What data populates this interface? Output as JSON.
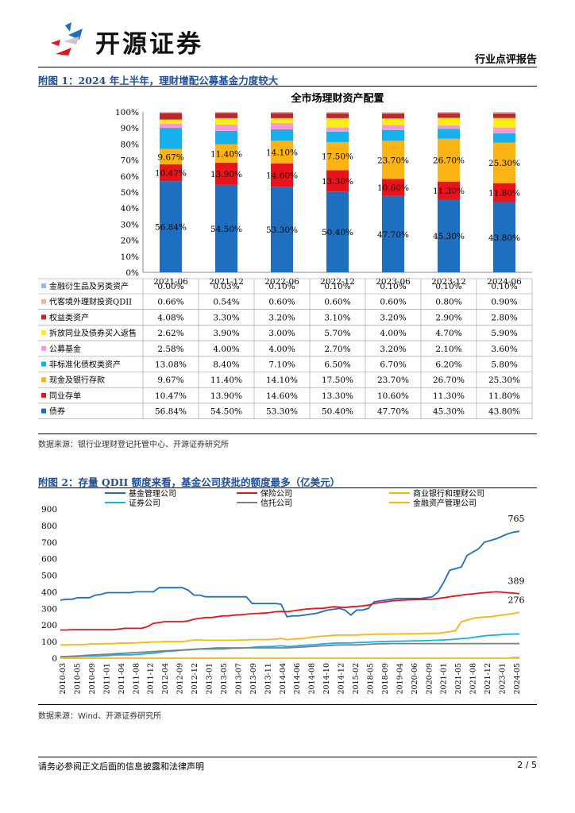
{
  "header": {
    "brand": "开源证券",
    "report_type": "行业点评报告"
  },
  "figure1": {
    "title": "附图 1：2024 年上半年，理财增配公募基金力度较大",
    "source": "数据来源：银行业理财登记托管中心、开源证券研究所",
    "chart_data": {
      "type": "bar",
      "stacked": true,
      "title": "全市场理财资产配置",
      "categories": [
        "2021-06",
        "2021-12",
        "2022-06",
        "2022-12",
        "2023-06",
        "2023-12",
        "2024-06"
      ],
      "ylim": [
        0,
        100
      ],
      "yticks": [
        "0%",
        "10%",
        "20%",
        "30%",
        "40%",
        "50%",
        "60%",
        "70%",
        "80%",
        "90%",
        "100%"
      ],
      "series": [
        {
          "name": "债券",
          "color": "#1f6fc1",
          "values": [
            56.84,
            54.5,
            53.3,
            50.4,
            47.7,
            45.3,
            43.8
          ],
          "labels": [
            "56.84%",
            "54.50%",
            "53.30%",
            "50.40%",
            "47.70%",
            "45.30%",
            "43.80%"
          ]
        },
        {
          "name": "同业存单",
          "color": "#e8141b",
          "values": [
            10.47,
            13.9,
            14.6,
            13.3,
            10.6,
            11.3,
            11.8
          ],
          "labels": [
            "10.47%",
            "13.90%",
            "14.60%",
            "13.30%",
            "10.60%",
            "11.30%",
            "11.80%"
          ]
        },
        {
          "name": "现金及银行存款",
          "color": "#fbb414",
          "values": [
            9.67,
            11.4,
            14.1,
            17.5,
            23.7,
            26.7,
            25.3
          ],
          "labels": [
            "9.67%",
            "11.40%",
            "14.10%",
            "17.50%",
            "23.70%",
            "26.70%",
            "25.30%"
          ]
        },
        {
          "name": "非标准化债权类资产",
          "color": "#17b0ea",
          "values": [
            13.08,
            8.4,
            7.1,
            6.5,
            6.7,
            6.2,
            5.8
          ],
          "labels": [
            "13.08%",
            "8.40%",
            "7.10%",
            "6.50%",
            "6.70%",
            "6.20%",
            "5.80%"
          ]
        },
        {
          "name": "公募基金",
          "color": "#f59ad6",
          "values": [
            2.58,
            4.0,
            4.0,
            2.7,
            3.2,
            2.1,
            3.6
          ],
          "labels": [
            "2.58%",
            "4.00%",
            "4.00%",
            "2.70%",
            "3.20%",
            "2.10%",
            "3.60%"
          ]
        },
        {
          "name": "拆放同业及债券买入返售",
          "color": "#fbee14",
          "values": [
            2.62,
            3.9,
            3.0,
            5.7,
            4.0,
            4.7,
            5.9
          ],
          "labels": [
            "2.62%",
            "3.90%",
            "3.00%",
            "5.70%",
            "4.00%",
            "4.70%",
            "5.90%"
          ]
        },
        {
          "name": "权益类资产",
          "color": "#c0262a",
          "values": [
            4.08,
            3.3,
            3.2,
            3.1,
            3.2,
            2.9,
            2.8
          ],
          "labels": [
            "4.08%",
            "3.30%",
            "3.20%",
            "3.10%",
            "3.20%",
            "2.90%",
            "2.80%"
          ]
        },
        {
          "name": "代客境外理财投资QDII",
          "color": "#f2b2a8",
          "values": [
            0.66,
            0.54,
            0.6,
            0.6,
            0.6,
            0.8,
            0.9
          ],
          "labels": [
            "0.66%",
            "0.54%",
            "0.60%",
            "0.60%",
            "0.60%",
            "0.80%",
            "0.90%"
          ]
        },
        {
          "name": "金融衍生品及另类资产",
          "color": "#9ab9e4",
          "values": [
            0.0,
            0.03,
            0.1,
            0.1,
            0.1,
            0.1,
            0.1
          ],
          "labels": [
            "0.00%",
            "0.03%",
            "0.10%",
            "0.10%",
            "0.10%",
            "0.10%",
            "0.10%"
          ]
        }
      ],
      "table_order": [
        "金融衍生品及另类资产",
        "代客境外理财投资QDII",
        "权益类资产",
        "拆放同业及债券买入返售",
        "公募基金",
        "非标准化债权类资产",
        "现金及银行存款",
        "同业存单",
        "债券"
      ],
      "bar_label_series": [
        "债券",
        "同业存单",
        "现金及银行存款"
      ]
    }
  },
  "figure2": {
    "title": "附图 2：存量 QDII 额度来看，基金公司获批的额度最多（亿美元）",
    "source": "数据来源：Wind、开源证券研究所",
    "chart_data": {
      "type": "line",
      "ylim": [
        0,
        900
      ],
      "yticks": [
        0,
        100,
        200,
        300,
        400,
        500,
        600,
        700,
        800,
        900
      ],
      "xticks": [
        "2010-03",
        "2010-05",
        "2010-09",
        "2011-01",
        "2011-04",
        "2011-08",
        "2011-12",
        "2012-04",
        "2012-09",
        "2012-12",
        "2013-01",
        "2013-05",
        "2013-07",
        "2013-09",
        "2013-11",
        "2014-04",
        "2014-06",
        "2014-08",
        "2014-10",
        "2014-12",
        "2015-02",
        "2018-05",
        "2018-09",
        "2019-04",
        "2020-06",
        "2020-09",
        "2021-01",
        "2021-05",
        "2021-08",
        "2021-12",
        "2023-01",
        "2024-05"
      ],
      "annotations": [
        {
          "series": "基金管理公司",
          "text": "765"
        },
        {
          "series": "保险公司",
          "text": "389"
        },
        {
          "series": "商业银行和理财公司",
          "text": "276"
        }
      ],
      "series": [
        {
          "name": "基金管理公司",
          "color": "#1f6fc1",
          "values": [
            350,
            355,
            355,
            365,
            365,
            365,
            380,
            385,
            395,
            395,
            395,
            395,
            395,
            400,
            400,
            400,
            400,
            425,
            425,
            425,
            425,
            425,
            410,
            380,
            380,
            370,
            370,
            370,
            370,
            370,
            370,
            370,
            370,
            330,
            330,
            330,
            330,
            330,
            325,
            250,
            255,
            255,
            260,
            265,
            270,
            280,
            290,
            295,
            300,
            290,
            260,
            290,
            290,
            300,
            340,
            345,
            350,
            355,
            360,
            360,
            360,
            360,
            360,
            365,
            370,
            400,
            460,
            530,
            540,
            550,
            620,
            640,
            660,
            700,
            710,
            720,
            735,
            750,
            760,
            765
          ]
        },
        {
          "name": "保险公司",
          "color": "#e8141b",
          "values": [
            170,
            170,
            172,
            172,
            172,
            172,
            172,
            172,
            172,
            172,
            175,
            180,
            180,
            180,
            180,
            190,
            210,
            215,
            220,
            220,
            220,
            220,
            225,
            235,
            240,
            245,
            245,
            250,
            255,
            255,
            260,
            262,
            265,
            268,
            270,
            272,
            275,
            280,
            282,
            280,
            285,
            290,
            295,
            298,
            300,
            300,
            305,
            310,
            308,
            305,
            310,
            312,
            315,
            320,
            330,
            335,
            340,
            345,
            348,
            350,
            352,
            353,
            354,
            355,
            356,
            360,
            365,
            370,
            375,
            380,
            385,
            388,
            392,
            395,
            398,
            400,
            398,
            395,
            392,
            389
          ]
        },
        {
          "name": "商业银行和理财公司",
          "color": "#fbb414",
          "values": [
            80,
            80,
            82,
            82,
            82,
            85,
            85,
            85,
            88,
            88,
            90,
            90,
            92,
            92,
            95,
            95,
            98,
            98,
            100,
            100,
            100,
            100,
            105,
            110,
            110,
            108,
            108,
            108,
            108,
            108,
            108,
            110,
            110,
            112,
            112,
            112,
            112,
            115,
            120,
            112,
            115,
            118,
            120,
            125,
            130,
            132,
            135,
            138,
            140,
            140,
            140,
            140,
            142,
            142,
            144,
            145,
            145,
            146,
            146,
            147,
            147,
            148,
            148,
            150,
            150,
            150,
            155,
            160,
            165,
            220,
            230,
            240,
            245,
            248,
            250,
            255,
            260,
            265,
            270,
            276
          ]
        },
        {
          "name": "证券公司",
          "color": "#17b0ea",
          "values": [
            10,
            10,
            10,
            10,
            12,
            12,
            12,
            15,
            15,
            18,
            20,
            20,
            20,
            22,
            25,
            28,
            30,
            35,
            40,
            42,
            45,
            48,
            50,
            52,
            55,
            55,
            55,
            55,
            55,
            58,
            60,
            60,
            62,
            65,
            68,
            70,
            70,
            72,
            75,
            70,
            72,
            75,
            78,
            80,
            82,
            85,
            88,
            90,
            92,
            92,
            92,
            94,
            95,
            96,
            98,
            100,
            100,
            102,
            102,
            103,
            104,
            105,
            105,
            106,
            107,
            108,
            110,
            112,
            115,
            118,
            120,
            125,
            130,
            135,
            138,
            140,
            142,
            144,
            145,
            146
          ]
        },
        {
          "name": "信托公司",
          "color": "#7f7f7f",
          "values": [
            10,
            10,
            12,
            14,
            16,
            18,
            20,
            22,
            24,
            26,
            28,
            30,
            32,
            34,
            36,
            38,
            40,
            42,
            44,
            46,
            48,
            50,
            52,
            54,
            56,
            58,
            60,
            62,
            62,
            62,
            62,
            62,
            62,
            62,
            62,
            62,
            62,
            62,
            62,
            62,
            64,
            66,
            68,
            70,
            72,
            74,
            76,
            78,
            80,
            80,
            80,
            80,
            82,
            84,
            85,
            86,
            87,
            88,
            88,
            88,
            88,
            88,
            88,
            88,
            88,
            88,
            88,
            88,
            88,
            88,
            88,
            88,
            88,
            88,
            88,
            88,
            88,
            88,
            88,
            88
          ]
        },
        {
          "name": "金融资产管理公司",
          "color": "#fbb414",
          "values": [
            0,
            0,
            0,
            0,
            0,
            0,
            0,
            0,
            0,
            0,
            0,
            0,
            0,
            0,
            0,
            0,
            0,
            0,
            0,
            0,
            0,
            0,
            0,
            0,
            0,
            0,
            0,
            0,
            0,
            0,
            0,
            0,
            0,
            0,
            0,
            0,
            0,
            0,
            0,
            0,
            0,
            0,
            0,
            0,
            0,
            0,
            0,
            0,
            0,
            0,
            0,
            0,
            0,
            0,
            0,
            0,
            0,
            0,
            0,
            0,
            0,
            0,
            0,
            0,
            0,
            0,
            0,
            0,
            0,
            0,
            0,
            0,
            0,
            0,
            0,
            0,
            0,
            0,
            5,
            5
          ]
        }
      ]
    }
  },
  "footer": {
    "disclaimer": "请务必参阅正文后面的信息披露和法律声明",
    "page": "2 / 5"
  }
}
